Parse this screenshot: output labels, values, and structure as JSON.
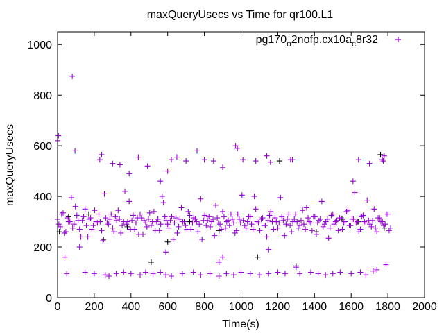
{
  "chart_data": {
    "type": "scatter",
    "title": "maxQueryUsecs vs Time for qr100.L1",
    "xlabel": "Time(s)",
    "ylabel": "maxQueryUsecs",
    "xlim": [
      0,
      2000
    ],
    "ylim": [
      0,
      1050
    ],
    "xticks": [
      0,
      200,
      400,
      600,
      800,
      1000,
      1200,
      1400,
      1600,
      1800,
      2000
    ],
    "yticks": [
      0,
      200,
      400,
      600,
      800,
      1000
    ],
    "grid": false,
    "legend_position": "top-right",
    "legend_parts": [
      "pg170",
      "o",
      "2nofp.cx10a",
      "c",
      "8r32"
    ],
    "series": [
      {
        "name": "pg170_o2nofp.cx10a_c8r32",
        "color": "#9400d3",
        "marker": "plus",
        "dense_x_start": 0,
        "dense_x_step": 15,
        "dense_y": [
          310,
          280,
          335,
          260,
          300,
          395,
          290,
          325,
          270,
          305,
          350,
          240,
          315,
          285,
          300,
          330,
          265,
          410,
          295,
          310,
          275,
          320,
          345,
          255,
          300,
          290,
          380,
          305,
          270,
          315,
          330,
          250,
          295,
          310,
          285,
          340,
          300,
          265,
          400,
          320,
          290,
          305,
          230,
          315,
          280,
          355,
          300,
          270,
          325,
          295,
          310,
          260,
          390,
          305,
          285,
          320,
          300,
          245,
          315,
          290,
          340,
          275,
          305,
          330,
          295,
          265,
          310,
          405,
          285,
          300,
          320,
          270,
          350,
          295,
          310,
          285,
          240,
          325,
          300,
          315,
          275,
          395,
          305,
          290,
          330,
          260,
          310,
          300,
          285,
          345,
          270,
          315,
          295,
          320,
          250,
          305,
          380,
          290,
          310,
          275,
          330,
          300,
          265,
          315,
          295,
          340,
          285,
          310,
          415,
          300,
          270,
          325,
          295,
          305,
          280,
          350,
          260,
          315,
          300,
          290,
          330,
          275
        ],
        "dense_y2": [
          290,
          330,
          255,
          315,
          300,
          275,
          360,
          305,
          240,
          320,
          285,
          310,
          270,
          345,
          295,
          300,
          225,
          315,
          290,
          330,
          260,
          305,
          310,
          285,
          420,
          300,
          270,
          325,
          295,
          250,
          315,
          305,
          280,
          335,
          300,
          265,
          310,
          290,
          375,
          305,
          275,
          320,
          295,
          255,
          310,
          300,
          285,
          340,
          270,
          315,
          300,
          290,
          230,
          325,
          305,
          280,
          310,
          365,
          295,
          270,
          320,
          300,
          285,
          310,
          255,
          330,
          295,
          305,
          275,
          320,
          290,
          400,
          300,
          265,
          315,
          285,
          305,
          340,
          270,
          300,
          295,
          320,
          245,
          310,
          285,
          300,
          330,
          275,
          305,
          290,
          355,
          300,
          265,
          320,
          295,
          310,
          280,
          300,
          235,
          325,
          290,
          305,
          315,
          270,
          300,
          345,
          285,
          310,
          295,
          260,
          320,
          300,
          385,
          290,
          305,
          275,
          315,
          300,
          285,
          330,
          265
        ],
        "outliers": [
          [
            0,
            620
          ],
          [
            5,
            640
          ],
          [
            80,
            875
          ],
          [
            95,
            580
          ],
          [
            230,
            545
          ],
          [
            240,
            565
          ],
          [
            300,
            530
          ],
          [
            340,
            525
          ],
          [
            390,
            490
          ],
          [
            440,
            555
          ],
          [
            490,
            520
          ],
          [
            560,
            460
          ],
          [
            600,
            500
          ],
          [
            620,
            545
          ],
          [
            650,
            555
          ],
          [
            700,
            540
          ],
          [
            760,
            580
          ],
          [
            800,
            545
          ],
          [
            850,
            540
          ],
          [
            900,
            515
          ],
          [
            970,
            600
          ],
          [
            980,
            590
          ],
          [
            1010,
            545
          ],
          [
            1080,
            540
          ],
          [
            1140,
            560
          ],
          [
            1160,
            535
          ],
          [
            1270,
            545
          ],
          [
            1280,
            545
          ],
          [
            1610,
            460
          ],
          [
            1640,
            545
          ],
          [
            1700,
            530
          ],
          [
            1770,
            545
          ],
          [
            1775,
            540
          ],
          [
            1780,
            560
          ],
          [
            1790,
            130
          ],
          [
            40,
            160
          ],
          [
            50,
            95
          ],
          [
            150,
            100
          ],
          [
            200,
            95
          ],
          [
            260,
            90
          ],
          [
            280,
            85
          ],
          [
            320,
            95
          ],
          [
            360,
            100
          ],
          [
            400,
            95
          ],
          [
            450,
            90
          ],
          [
            480,
            100
          ],
          [
            520,
            95
          ],
          [
            560,
            100
          ],
          [
            590,
            90
          ],
          [
            620,
            85
          ],
          [
            680,
            95
          ],
          [
            740,
            100
          ],
          [
            780,
            90
          ],
          [
            830,
            95
          ],
          [
            880,
            85
          ],
          [
            920,
            95
          ],
          [
            960,
            90
          ],
          [
            1000,
            100
          ],
          [
            1050,
            95
          ],
          [
            1100,
            90
          ],
          [
            1150,
            95
          ],
          [
            1200,
            100
          ],
          [
            1240,
            95
          ],
          [
            1300,
            120
          ],
          [
            1320,
            95
          ],
          [
            1380,
            100
          ],
          [
            1420,
            95
          ],
          [
            1460,
            90
          ],
          [
            1500,
            95
          ],
          [
            1540,
            100
          ],
          [
            1600,
            95
          ],
          [
            1650,
            100
          ],
          [
            1680,
            90
          ],
          [
            1720,
            105
          ],
          [
            1740,
            110
          ],
          [
            880,
            140
          ],
          [
            900,
            160
          ],
          [
            590,
            180
          ],
          [
            120,
            200
          ],
          [
            1150,
            190
          ]
        ]
      },
      {
        "name": "",
        "color": "#000000",
        "marker": "plus",
        "points": [
          [
            10,
            260
          ],
          [
            60,
            320
          ],
          [
            170,
            330
          ],
          [
            250,
            230
          ],
          [
            380,
            280
          ],
          [
            510,
            140
          ],
          [
            600,
            220
          ],
          [
            720,
            300
          ],
          [
            880,
            265
          ],
          [
            1090,
            160
          ],
          [
            1210,
            540
          ],
          [
            1300,
            125
          ],
          [
            1410,
            260
          ],
          [
            1550,
            310
          ],
          [
            1640,
            300
          ],
          [
            1760,
            565
          ],
          [
            1780,
            275
          ]
        ]
      }
    ]
  }
}
